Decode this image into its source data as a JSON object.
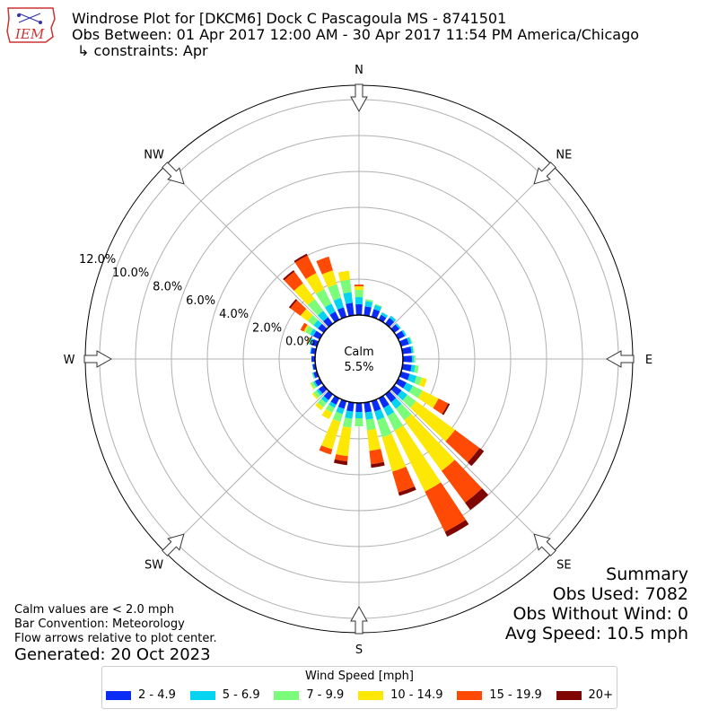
{
  "header": {
    "logo_text": "IEM",
    "title_line1": "Windrose Plot for [DKCM6] Dock C  Pascagoula  MS - 8741501",
    "title_line2": "Obs Between: 01 Apr 2017 12:00 AM - 30 Apr 2017 11:54 PM America/Chicago",
    "title_line3": "↳ constraints: Apr"
  },
  "summary": {
    "heading": "Summary",
    "obs_used": "Obs Used: 7082",
    "obs_without_wind": "Obs Without Wind: 0",
    "avg_speed": "Avg Speed: 10.5 mph"
  },
  "notes": {
    "calm_note": "Calm values are < 2.0 mph",
    "bar_convention": "Bar Convention: Meteorology",
    "flow_arrows": "Flow arrows relative to plot center.",
    "generated": "Generated: 20 Oct 2023"
  },
  "chart_data": {
    "type": "windrose",
    "calm_label": "Calm",
    "calm_value": "5.5%",
    "radial_ticks": [
      "0.0%",
      "2.0%",
      "4.0%",
      "6.0%",
      "8.0%",
      "10.0%",
      "12.0%"
    ],
    "radial_values": [
      0,
      2,
      4,
      6,
      8,
      10,
      12
    ],
    "radial_max": 12.8,
    "compass": [
      "N",
      "NE",
      "E",
      "SE",
      "S",
      "SW",
      "W",
      "NW"
    ],
    "legend_title": "Wind Speed [mph]",
    "speed_bins": [
      "2 - 4.9",
      "5 - 6.9",
      "7 - 9.9",
      "10 - 14.9",
      "15 - 19.9",
      "20+"
    ],
    "colors": [
      "#0a2cf5",
      "#06d3f0",
      "#7bfd7b",
      "#fde805",
      "#fe4a05",
      "#7f0503"
    ],
    "directions": [
      0,
      10,
      20,
      30,
      40,
      50,
      60,
      70,
      80,
      90,
      100,
      110,
      120,
      130,
      140,
      150,
      160,
      170,
      180,
      190,
      200,
      210,
      220,
      230,
      240,
      250,
      260,
      270,
      280,
      290,
      300,
      310,
      320,
      330,
      340,
      350
    ],
    "cumulative": [
      [
        0.6,
        1.0,
        1.4,
        1.6,
        1.7,
        1.7
      ],
      [
        0.5,
        0.8,
        0.9,
        0.9,
        0.9,
        0.9
      ],
      [
        0.45,
        0.7,
        0.75,
        0.75,
        0.75,
        0.75
      ],
      [
        0.3,
        0.45,
        0.45,
        0.45,
        0.45,
        0.45
      ],
      [
        0.4,
        0.55,
        0.55,
        0.55,
        0.55,
        0.55
      ],
      [
        0.35,
        0.45,
        0.45,
        0.45,
        0.45,
        0.45
      ],
      [
        0.4,
        0.5,
        0.5,
        0.5,
        0.5,
        0.5
      ],
      [
        0.45,
        0.6,
        0.65,
        0.65,
        0.65,
        0.65
      ],
      [
        0.5,
        0.6,
        0.65,
        0.65,
        0.65,
        0.65
      ],
      [
        0.5,
        0.6,
        0.7,
        0.7,
        0.7,
        0.7
      ],
      [
        0.5,
        0.7,
        0.9,
        0.9,
        0.9,
        0.9
      ],
      [
        0.5,
        0.9,
        1.2,
        1.5,
        1.5,
        1.5
      ],
      [
        0.5,
        0.9,
        1.5,
        2.5,
        3.1,
        3.2
      ],
      [
        0.5,
        0.9,
        1.5,
        4.2,
        5.9,
        6.2
      ],
      [
        0.55,
        1.0,
        1.8,
        5.3,
        7.5,
        8.0
      ],
      [
        0.6,
        1.1,
        2.0,
        5.8,
        8.3,
        8.6
      ],
      [
        0.6,
        1.1,
        2.1,
        4.1,
        5.3,
        5.5
      ],
      [
        0.55,
        0.95,
        1.55,
        2.7,
        3.45,
        3.65
      ],
      [
        0.5,
        0.85,
        1.3,
        1.3,
        1.3,
        1.3
      ],
      [
        0.5,
        0.9,
        1.4,
        3.0,
        3.3,
        3.5
      ],
      [
        0.45,
        0.75,
        1.2,
        2.8,
        3.1,
        3.1
      ],
      [
        0.4,
        0.6,
        0.9,
        1.3,
        1.3,
        1.3
      ],
      [
        0.4,
        0.6,
        0.9,
        1.1,
        1.1,
        1.1
      ],
      [
        0.35,
        0.5,
        0.7,
        0.8,
        0.8,
        0.8
      ],
      [
        0.3,
        0.4,
        0.55,
        0.6,
        0.6,
        0.6
      ],
      [
        0.2,
        0.25,
        0.3,
        0.3,
        0.3,
        0.3
      ],
      [
        0.15,
        0.18,
        0.18,
        0.18,
        0.18,
        0.18
      ],
      [
        0.2,
        0.2,
        0.2,
        0.2,
        0.2,
        0.2
      ],
      [
        0.25,
        0.3,
        0.3,
        0.3,
        0.3,
        0.3
      ],
      [
        0.3,
        0.45,
        0.55,
        0.55,
        0.6,
        0.6
      ],
      [
        0.4,
        0.6,
        0.9,
        1.0,
        1.2,
        1.2
      ],
      [
        0.4,
        0.7,
        1.1,
        1.6,
        2.3,
        2.4
      ],
      [
        0.45,
        0.9,
        1.7,
        2.8,
        3.6,
        3.7
      ],
      [
        0.5,
        1.0,
        1.9,
        2.9,
        4.0,
        4.1
      ],
      [
        0.55,
        1.1,
        1.9,
        2.7,
        3.5,
        3.5
      ],
      [
        0.7,
        1.3,
        2.0,
        2.5,
        2.5,
        2.5
      ]
    ]
  }
}
